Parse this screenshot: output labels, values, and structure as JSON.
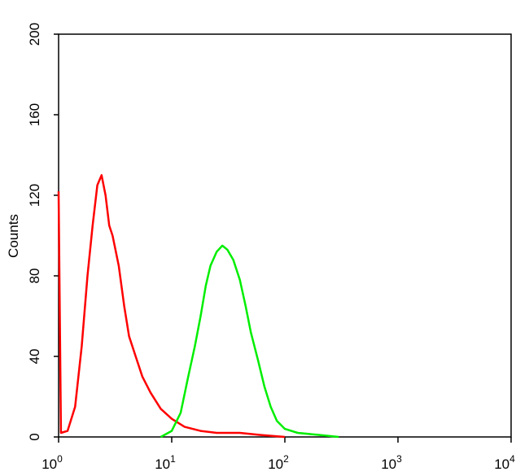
{
  "chart_data": {
    "type": "line",
    "ylabel": "Counts",
    "xscale": "log",
    "xlim": [
      1,
      10000
    ],
    "xticks": [
      {
        "value": 1,
        "label": "10",
        "sup": "0"
      },
      {
        "value": 10,
        "label": "10",
        "sup": "1"
      },
      {
        "value": 100,
        "label": "10",
        "sup": "2"
      },
      {
        "value": 1000,
        "label": "10",
        "sup": "3"
      },
      {
        "value": 10000,
        "label": "10",
        "sup": "4"
      }
    ],
    "ylim": [
      0,
      200
    ],
    "yticks": [
      0,
      40,
      80,
      120,
      160,
      200
    ],
    "series": [
      {
        "color": "#ff0000",
        "x": [
          1,
          1.05,
          1.2,
          1.4,
          1.6,
          1.8,
          2.0,
          2.2,
          2.4,
          2.6,
          2.8,
          3.0,
          3.4,
          3.8,
          4.2,
          4.8,
          5.5,
          6.5,
          8,
          10,
          13,
          18,
          25,
          40,
          60,
          100
        ],
        "values": [
          122,
          2,
          3,
          15,
          45,
          80,
          105,
          125,
          130,
          120,
          105,
          100,
          85,
          65,
          50,
          40,
          30,
          22,
          14,
          9,
          5,
          3,
          2,
          2,
          1,
          0
        ]
      },
      {
        "color": "#00ee00",
        "x": [
          8,
          10,
          12,
          14,
          16,
          18,
          20,
          22,
          25,
          28,
          31,
          35,
          40,
          45,
          50,
          58,
          66,
          75,
          85,
          100,
          130,
          200,
          300
        ],
        "values": [
          0,
          3,
          12,
          30,
          45,
          60,
          75,
          85,
          92,
          95,
          93,
          88,
          78,
          65,
          52,
          38,
          25,
          15,
          8,
          4,
          2,
          1,
          0
        ]
      }
    ]
  }
}
